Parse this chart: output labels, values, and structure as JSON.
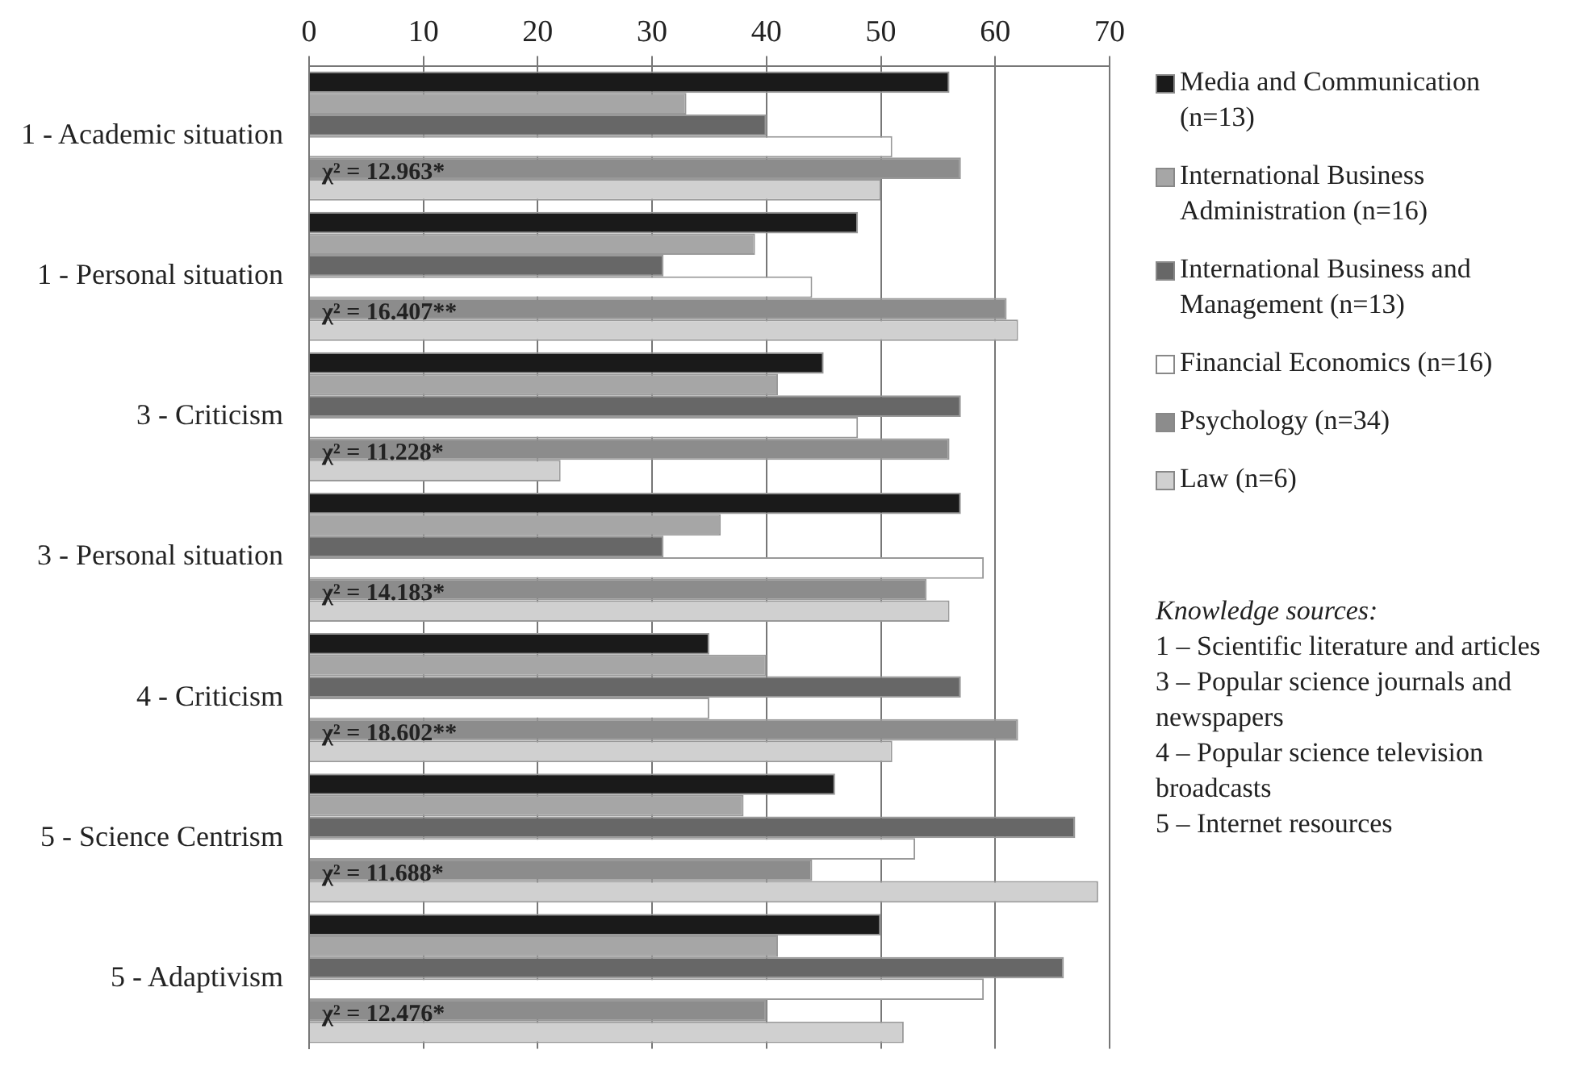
{
  "chart_data": {
    "type": "bar",
    "orientation": "horizontal",
    "categories": [
      "1 - Academic situation",
      "1 - Personal situation",
      "3 - Criticism",
      "3 - Personal situation",
      "4 - Criticism",
      "5 - Science Centrism",
      "5 - Adaptivism"
    ],
    "series": [
      {
        "name": "Media and Communication (n=13)",
        "color": "#1a1a1a",
        "values": [
          56,
          48,
          45,
          57,
          35,
          46,
          50
        ]
      },
      {
        "name": "International Business Administration (n=16)",
        "color": "#a6a6a6",
        "values": [
          33,
          39,
          41,
          36,
          40,
          38,
          41
        ]
      },
      {
        "name": "International Business and Management (n=13)",
        "color": "#676767",
        "values": [
          40,
          31,
          57,
          31,
          57,
          67,
          66
        ]
      },
      {
        "name": "Financial Economics (n=16)",
        "color": "#ffffff",
        "values": [
          51,
          44,
          48,
          59,
          35,
          53,
          59
        ]
      },
      {
        "name": "Psychology (n=34)",
        "color": "#8c8c8c",
        "values": [
          57,
          61,
          56,
          54,
          62,
          44,
          40
        ]
      },
      {
        "name": "Law  (n=6)",
        "color": "#d0d0d0",
        "values": [
          50,
          62,
          22,
          56,
          51,
          69,
          52
        ]
      }
    ],
    "xlim": [
      0,
      70
    ],
    "xticks": [
      0,
      10,
      20,
      30,
      40,
      50,
      60,
      70
    ],
    "grid": "x",
    "legend": "right",
    "annotations": [
      {
        "text": "χ² = 12.963*",
        "y": "1 - Academic situation"
      },
      {
        "text": "χ² = 16.407**",
        "y": "1 - Personal situation"
      },
      {
        "text": "χ² = 11.228*",
        "y": "3 - Criticism"
      },
      {
        "text": "χ² = 14.183*",
        "y": "3 - Personal situation"
      },
      {
        "text": "χ² = 18.602**",
        "y": "4 - Criticism"
      },
      {
        "text": "χ² = 11.688*",
        "y": "5 - Science Centrism"
      },
      {
        "text": "χ² = 12.476*",
        "y": "5 - Adaptivism"
      },
      "Knowledge sources:",
      "1 – Scientific literature and articles",
      "3 – Popular science journals and newspapers",
      "4 – Popular science television broadcasts",
      "5 – Internet resources"
    ]
  }
}
